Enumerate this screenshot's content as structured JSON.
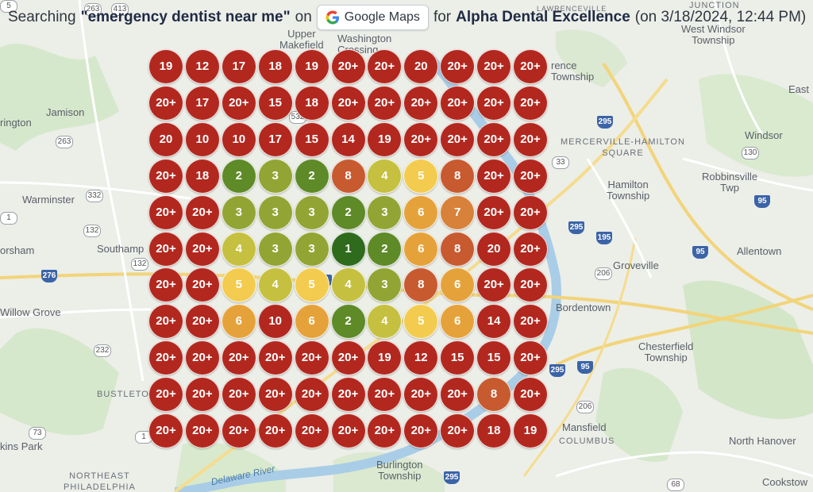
{
  "header": {
    "prefix": "Searching",
    "query": "\"emergency dentist near me\"",
    "on_text": "on",
    "platform_label": "Google Maps",
    "for_text": "for",
    "business": "Alpha Dental Excellence",
    "date": "(on 3/18/2024, 12:44 PM)"
  },
  "map": {
    "places": [
      {
        "id": "upper-makefield",
        "text": "Upper\nMakefield"
      },
      {
        "id": "washington-crossing",
        "text": "Washington\nCrossing"
      },
      {
        "id": "jamison",
        "text": "Jamison"
      },
      {
        "id": "warrington",
        "text": "rington"
      },
      {
        "id": "warminster",
        "text": "Warminster"
      },
      {
        "id": "southampton",
        "text": "Southamp"
      },
      {
        "id": "horsham",
        "text": "orsham"
      },
      {
        "id": "willow-grove",
        "text": "Willow Grove"
      },
      {
        "id": "bustleton",
        "text": "BUSTLETON"
      },
      {
        "id": "somerton-park",
        "text": "kins Park"
      },
      {
        "id": "northeast-philadelphia",
        "text": "NORTHEAST\nPHILADELPHIA"
      },
      {
        "id": "lawrenceville",
        "text": "LAWRENCEVILLE"
      },
      {
        "id": "lawrence-township",
        "text": "rence\nTownship"
      },
      {
        "id": "junction",
        "text": "JUNCTION"
      },
      {
        "id": "west-windsor",
        "text": "West Windsor\nTownship"
      },
      {
        "id": "east",
        "text": "East"
      },
      {
        "id": "windsor",
        "text": "Windsor"
      },
      {
        "id": "mercerville",
        "text": "MERCERVILLE-HAMILTON\nSQUARE"
      },
      {
        "id": "hamilton",
        "text": "Hamilton\nTownship"
      },
      {
        "id": "robbinsville",
        "text": "Robbinsville\nTwp"
      },
      {
        "id": "allentown",
        "text": "Allentown"
      },
      {
        "id": "groveville",
        "text": "Groveville"
      },
      {
        "id": "bordentown",
        "text": "Bordentown"
      },
      {
        "id": "chesterfield",
        "text": "Chesterfield\nTownship"
      },
      {
        "id": "mansfield",
        "text": "Mansfield"
      },
      {
        "id": "columbus",
        "text": "COLUMBUS"
      },
      {
        "id": "north-hanover",
        "text": "North Hanover"
      },
      {
        "id": "cookstown",
        "text": "Cookstow"
      },
      {
        "id": "burlington",
        "text": "Burlington\nTownship"
      },
      {
        "id": "delaware-river",
        "text": "Delaware River"
      }
    ],
    "shields": [
      {
        "id": "s263a",
        "text": "263"
      },
      {
        "id": "s413",
        "text": "413"
      },
      {
        "id": "s263b",
        "text": "263"
      },
      {
        "id": "s332",
        "text": "332"
      },
      {
        "id": "s132a",
        "text": "132"
      },
      {
        "id": "s132b",
        "text": "132"
      },
      {
        "id": "s232",
        "text": "232"
      },
      {
        "id": "s73",
        "text": "73"
      },
      {
        "id": "s33",
        "text": "33"
      },
      {
        "id": "s130",
        "text": "130"
      },
      {
        "id": "s206a",
        "text": "206"
      },
      {
        "id": "s206b",
        "text": "206"
      },
      {
        "id": "s68",
        "text": "68"
      },
      {
        "id": "s1",
        "text": "1"
      },
      {
        "id": "s1b",
        "text": "1"
      },
      {
        "id": "s532",
        "text": "532"
      },
      {
        "id": "s5",
        "text": "5"
      }
    ],
    "interstates": [
      {
        "id": "i295a",
        "text": "295"
      },
      {
        "id": "i95a",
        "text": "95"
      },
      {
        "id": "i295b",
        "text": "295"
      },
      {
        "id": "i195",
        "text": "195"
      },
      {
        "id": "i95b",
        "text": "95"
      },
      {
        "id": "i276",
        "text": "276"
      },
      {
        "id": "i295c",
        "text": "295"
      },
      {
        "id": "i95c",
        "text": "95"
      },
      {
        "id": "i295d",
        "text": "295"
      },
      {
        "id": "i95d",
        "text": "95"
      }
    ]
  },
  "rank_grid": {
    "rows": [
      [
        "19",
        "12",
        "17",
        "18",
        "19",
        "20+",
        "20+",
        "20",
        "20+",
        "20+",
        "20+"
      ],
      [
        "20+",
        "17",
        "20+",
        "15",
        "18",
        "20+",
        "20+",
        "20+",
        "20+",
        "20+",
        "20+"
      ],
      [
        "20",
        "10",
        "10",
        "17",
        "15",
        "14",
        "19",
        "20+",
        "20+",
        "20+",
        "20+"
      ],
      [
        "20+",
        "18",
        "2",
        "3",
        "2",
        "8",
        "4",
        "5",
        "8",
        "20+",
        "20+"
      ],
      [
        "20+",
        "20+",
        "3",
        "3",
        "3",
        "2",
        "3",
        "6",
        "7",
        "20+",
        "20+"
      ],
      [
        "20+",
        "20+",
        "4",
        "3",
        "3",
        "1",
        "2",
        "6",
        "8",
        "20",
        "20+"
      ],
      [
        "20+",
        "20+",
        "5",
        "4",
        "5",
        "4",
        "3",
        "8",
        "6",
        "20+",
        "20+"
      ],
      [
        "20+",
        "20+",
        "6",
        "10",
        "6",
        "2",
        "4",
        "5",
        "6",
        "14",
        "20+"
      ],
      [
        "20+",
        "20+",
        "20+",
        "20+",
        "20+",
        "20+",
        "19",
        "12",
        "15",
        "15",
        "20+"
      ],
      [
        "20+",
        "20+",
        "20+",
        "20+",
        "20+",
        "20+",
        "20+",
        "20+",
        "20+",
        "8",
        "20+"
      ],
      [
        "20+",
        "20+",
        "20+",
        "20+",
        "20+",
        "20+",
        "20+",
        "20+",
        "20+",
        "18",
        "19"
      ]
    ],
    "colors": {
      "1": "#2e6b1c",
      "2": "#5e8a27",
      "3": "#92a534",
      "4": "#c5c040",
      "5": "#f3cc4f",
      "6": "#e6a23a",
      "7": "#d8813a",
      "8": "#c85a30",
      "10+": "#b2281f"
    }
  }
}
